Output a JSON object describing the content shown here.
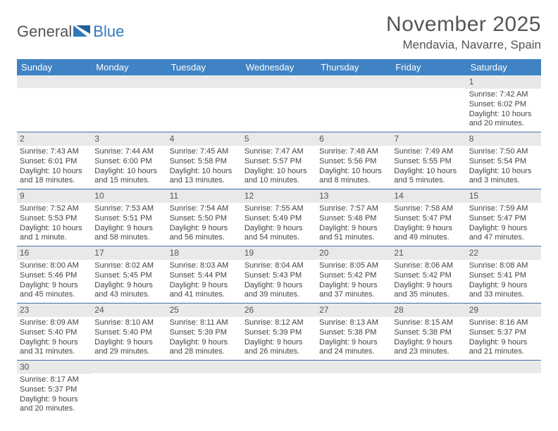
{
  "logo": {
    "text1": "General",
    "text2": "Blue"
  },
  "title": "November 2025",
  "location": "Mendavia, Navarre, Spain",
  "weekdays": [
    "Sunday",
    "Monday",
    "Tuesday",
    "Wednesday",
    "Thursday",
    "Friday",
    "Saturday"
  ],
  "colors": {
    "header_bg": "#3f83c4",
    "daynum_bg": "#e9e9e9",
    "week_border": "#3f6fa8",
    "logo_blue": "#2f7abf",
    "text": "#555555"
  },
  "weeks": [
    [
      {
        "n": "",
        "sr": "",
        "ss": "",
        "dl": ""
      },
      {
        "n": "",
        "sr": "",
        "ss": "",
        "dl": ""
      },
      {
        "n": "",
        "sr": "",
        "ss": "",
        "dl": ""
      },
      {
        "n": "",
        "sr": "",
        "ss": "",
        "dl": ""
      },
      {
        "n": "",
        "sr": "",
        "ss": "",
        "dl": ""
      },
      {
        "n": "",
        "sr": "",
        "ss": "",
        "dl": ""
      },
      {
        "n": "1",
        "sr": "Sunrise: 7:42 AM",
        "ss": "Sunset: 6:02 PM",
        "dl": "Daylight: 10 hours and 20 minutes."
      }
    ],
    [
      {
        "n": "2",
        "sr": "Sunrise: 7:43 AM",
        "ss": "Sunset: 6:01 PM",
        "dl": "Daylight: 10 hours and 18 minutes."
      },
      {
        "n": "3",
        "sr": "Sunrise: 7:44 AM",
        "ss": "Sunset: 6:00 PM",
        "dl": "Daylight: 10 hours and 15 minutes."
      },
      {
        "n": "4",
        "sr": "Sunrise: 7:45 AM",
        "ss": "Sunset: 5:58 PM",
        "dl": "Daylight: 10 hours and 13 minutes."
      },
      {
        "n": "5",
        "sr": "Sunrise: 7:47 AM",
        "ss": "Sunset: 5:57 PM",
        "dl": "Daylight: 10 hours and 10 minutes."
      },
      {
        "n": "6",
        "sr": "Sunrise: 7:48 AM",
        "ss": "Sunset: 5:56 PM",
        "dl": "Daylight: 10 hours and 8 minutes."
      },
      {
        "n": "7",
        "sr": "Sunrise: 7:49 AM",
        "ss": "Sunset: 5:55 PM",
        "dl": "Daylight: 10 hours and 5 minutes."
      },
      {
        "n": "8",
        "sr": "Sunrise: 7:50 AM",
        "ss": "Sunset: 5:54 PM",
        "dl": "Daylight: 10 hours and 3 minutes."
      }
    ],
    [
      {
        "n": "9",
        "sr": "Sunrise: 7:52 AM",
        "ss": "Sunset: 5:53 PM",
        "dl": "Daylight: 10 hours and 1 minute."
      },
      {
        "n": "10",
        "sr": "Sunrise: 7:53 AM",
        "ss": "Sunset: 5:51 PM",
        "dl": "Daylight: 9 hours and 58 minutes."
      },
      {
        "n": "11",
        "sr": "Sunrise: 7:54 AM",
        "ss": "Sunset: 5:50 PM",
        "dl": "Daylight: 9 hours and 56 minutes."
      },
      {
        "n": "12",
        "sr": "Sunrise: 7:55 AM",
        "ss": "Sunset: 5:49 PM",
        "dl": "Daylight: 9 hours and 54 minutes."
      },
      {
        "n": "13",
        "sr": "Sunrise: 7:57 AM",
        "ss": "Sunset: 5:48 PM",
        "dl": "Daylight: 9 hours and 51 minutes."
      },
      {
        "n": "14",
        "sr": "Sunrise: 7:58 AM",
        "ss": "Sunset: 5:47 PM",
        "dl": "Daylight: 9 hours and 49 minutes."
      },
      {
        "n": "15",
        "sr": "Sunrise: 7:59 AM",
        "ss": "Sunset: 5:47 PM",
        "dl": "Daylight: 9 hours and 47 minutes."
      }
    ],
    [
      {
        "n": "16",
        "sr": "Sunrise: 8:00 AM",
        "ss": "Sunset: 5:46 PM",
        "dl": "Daylight: 9 hours and 45 minutes."
      },
      {
        "n": "17",
        "sr": "Sunrise: 8:02 AM",
        "ss": "Sunset: 5:45 PM",
        "dl": "Daylight: 9 hours and 43 minutes."
      },
      {
        "n": "18",
        "sr": "Sunrise: 8:03 AM",
        "ss": "Sunset: 5:44 PM",
        "dl": "Daylight: 9 hours and 41 minutes."
      },
      {
        "n": "19",
        "sr": "Sunrise: 8:04 AM",
        "ss": "Sunset: 5:43 PM",
        "dl": "Daylight: 9 hours and 39 minutes."
      },
      {
        "n": "20",
        "sr": "Sunrise: 8:05 AM",
        "ss": "Sunset: 5:42 PM",
        "dl": "Daylight: 9 hours and 37 minutes."
      },
      {
        "n": "21",
        "sr": "Sunrise: 8:06 AM",
        "ss": "Sunset: 5:42 PM",
        "dl": "Daylight: 9 hours and 35 minutes."
      },
      {
        "n": "22",
        "sr": "Sunrise: 8:08 AM",
        "ss": "Sunset: 5:41 PM",
        "dl": "Daylight: 9 hours and 33 minutes."
      }
    ],
    [
      {
        "n": "23",
        "sr": "Sunrise: 8:09 AM",
        "ss": "Sunset: 5:40 PM",
        "dl": "Daylight: 9 hours and 31 minutes."
      },
      {
        "n": "24",
        "sr": "Sunrise: 8:10 AM",
        "ss": "Sunset: 5:40 PM",
        "dl": "Daylight: 9 hours and 29 minutes."
      },
      {
        "n": "25",
        "sr": "Sunrise: 8:11 AM",
        "ss": "Sunset: 5:39 PM",
        "dl": "Daylight: 9 hours and 28 minutes."
      },
      {
        "n": "26",
        "sr": "Sunrise: 8:12 AM",
        "ss": "Sunset: 5:39 PM",
        "dl": "Daylight: 9 hours and 26 minutes."
      },
      {
        "n": "27",
        "sr": "Sunrise: 8:13 AM",
        "ss": "Sunset: 5:38 PM",
        "dl": "Daylight: 9 hours and 24 minutes."
      },
      {
        "n": "28",
        "sr": "Sunrise: 8:15 AM",
        "ss": "Sunset: 5:38 PM",
        "dl": "Daylight: 9 hours and 23 minutes."
      },
      {
        "n": "29",
        "sr": "Sunrise: 8:16 AM",
        "ss": "Sunset: 5:37 PM",
        "dl": "Daylight: 9 hours and 21 minutes."
      }
    ],
    [
      {
        "n": "30",
        "sr": "Sunrise: 8:17 AM",
        "ss": "Sunset: 5:37 PM",
        "dl": "Daylight: 9 hours and 20 minutes."
      },
      {
        "n": "",
        "sr": "",
        "ss": "",
        "dl": ""
      },
      {
        "n": "",
        "sr": "",
        "ss": "",
        "dl": ""
      },
      {
        "n": "",
        "sr": "",
        "ss": "",
        "dl": ""
      },
      {
        "n": "",
        "sr": "",
        "ss": "",
        "dl": ""
      },
      {
        "n": "",
        "sr": "",
        "ss": "",
        "dl": ""
      },
      {
        "n": "",
        "sr": "",
        "ss": "",
        "dl": ""
      }
    ]
  ]
}
